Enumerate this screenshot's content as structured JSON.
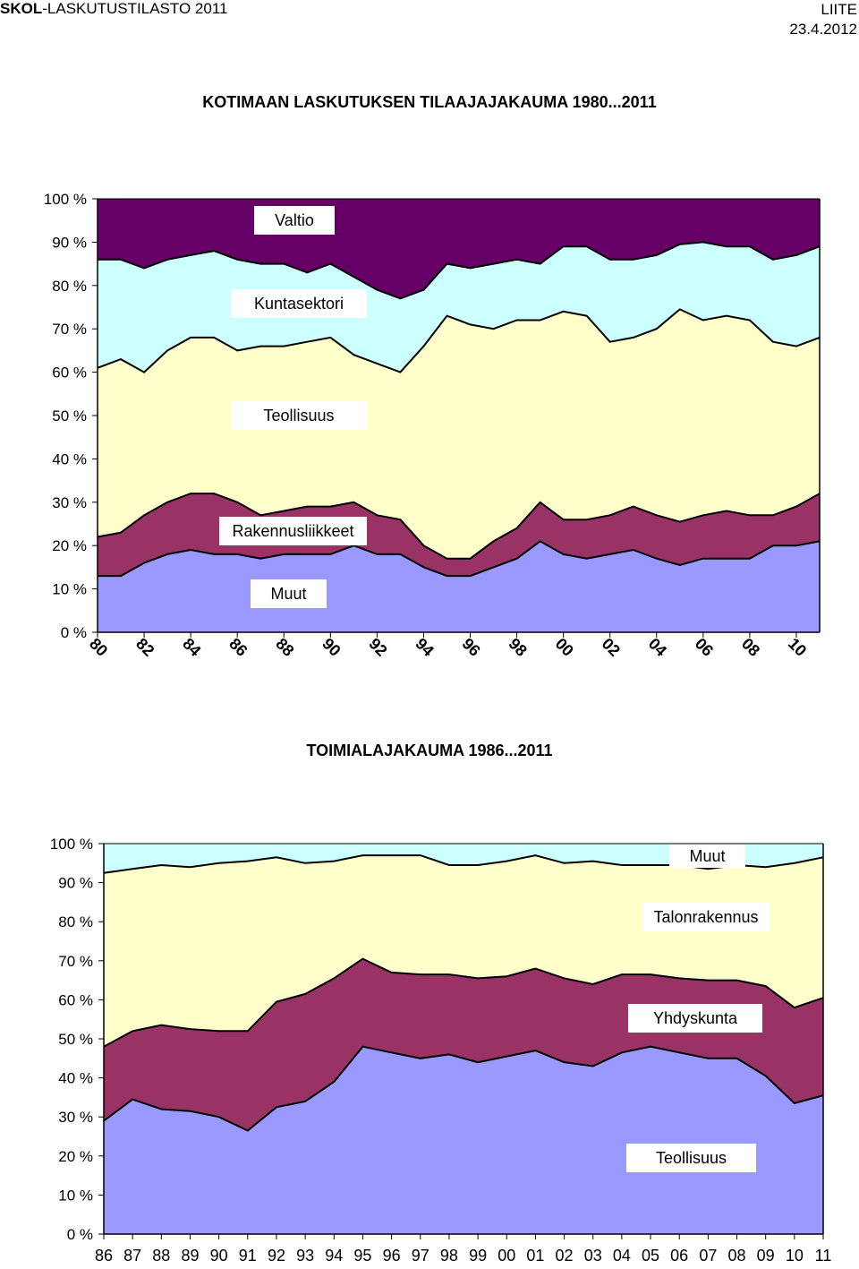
{
  "header": {
    "org": "SKOL",
    "subtitle": "-LASKUTUSTILASTO 2011",
    "label": "LIITE",
    "date": "23.4.2012"
  },
  "chart_data": [
    {
      "type": "area",
      "stacked": true,
      "title": "KOTIMAAN LASKUTUKSEN TILAAJAJAKAUMA 1980...2011",
      "x": [
        1980,
        1981,
        1982,
        1983,
        1984,
        1985,
        1986,
        1987,
        1988,
        1989,
        1990,
        1991,
        1992,
        1993,
        1994,
        1995,
        1996,
        1997,
        1998,
        1999,
        2000,
        2001,
        2002,
        2003,
        2004,
        2005,
        2006,
        2007,
        2008,
        2009,
        2010,
        2011
      ],
      "tick_labels": [
        "80",
        "82",
        "84",
        "86",
        "88",
        "90",
        "92",
        "94",
        "96",
        "98",
        "00",
        "02",
        "04",
        "06",
        "08",
        "10"
      ],
      "yticks": [
        "0 %",
        "10 %",
        "20 %",
        "30 %",
        "40 %",
        "50 %",
        "60 %",
        "70 %",
        "80 %",
        "90 %",
        "100 %"
      ],
      "ylim": [
        0,
        100
      ],
      "series": [
        {
          "name": "Muut",
          "color": "#9999FF",
          "values": [
            13,
            13,
            16,
            18,
            19,
            18,
            18,
            17,
            18,
            18,
            18,
            20,
            18,
            18,
            15,
            13,
            13,
            15,
            17,
            21,
            18,
            17,
            18,
            19,
            17,
            15.5,
            17,
            17,
            17,
            20,
            20,
            21
          ]
        },
        {
          "name": "Rakennusliikkeet",
          "color": "#993366",
          "values": [
            9,
            10,
            11,
            12,
            13,
            14,
            12,
            10,
            10,
            11,
            11,
            10,
            9,
            8,
            5,
            4,
            4,
            6,
            7,
            9,
            8,
            9,
            9,
            10,
            10,
            10,
            10,
            11,
            10,
            7,
            9,
            11
          ]
        },
        {
          "name": "Teollisuus",
          "color": "#FFFFCC",
          "values": [
            39,
            40,
            33,
            35,
            36,
            36,
            35,
            39,
            38,
            38,
            39,
            34,
            35,
            34,
            46,
            56,
            54,
            49,
            48,
            42,
            48,
            47,
            40,
            39,
            43,
            49,
            45,
            45,
            45,
            40,
            37,
            36
          ]
        },
        {
          "name": "Kuntasektori",
          "color": "#CCFFFF",
          "values": [
            25,
            23,
            24,
            21,
            19,
            20,
            21,
            19,
            19,
            16,
            17,
            18,
            17,
            17,
            13,
            12,
            13,
            15,
            14,
            13,
            15,
            16,
            19,
            18,
            17,
            15,
            18,
            16,
            17,
            19,
            21,
            21
          ]
        },
        {
          "name": "Valtio",
          "color": "#660066",
          "values": [
            14,
            14,
            16,
            14,
            13,
            12,
            14,
            15,
            15,
            17,
            15,
            18,
            21,
            23,
            21,
            15,
            16,
            15,
            14,
            15,
            11,
            11,
            14,
            14,
            13,
            10.5,
            10,
            11,
            11,
            14,
            13,
            11
          ]
        }
      ]
    },
    {
      "type": "area",
      "stacked": true,
      "title": "TOIMIALAJAKAUMA 1986...2011",
      "x": [
        1986,
        1987,
        1988,
        1989,
        1990,
        1991,
        1992,
        1993,
        1994,
        1995,
        1996,
        1997,
        1998,
        1999,
        2000,
        2001,
        2002,
        2003,
        2004,
        2005,
        2006,
        2007,
        2008,
        2009,
        2010,
        2011
      ],
      "tick_labels": [
        "86",
        "87",
        "88",
        "89",
        "90",
        "91",
        "92",
        "93",
        "94",
        "95",
        "96",
        "97",
        "98",
        "99",
        "00",
        "01",
        "02",
        "03",
        "04",
        "05",
        "06",
        "07",
        "08",
        "09",
        "10",
        "11"
      ],
      "yticks": [
        "0 %",
        "10 %",
        "20 %",
        "30 %",
        "40 %",
        "50 %",
        "60 %",
        "70 %",
        "80 %",
        "90 %",
        "100 %"
      ],
      "ylim": [
        0,
        100
      ],
      "series": [
        {
          "name": "Teollisuus",
          "color": "#9999FF",
          "values": [
            29,
            34.5,
            32,
            31.5,
            30,
            26.5,
            32.5,
            34,
            39,
            48,
            46.5,
            45,
            46,
            44,
            45.5,
            47,
            44,
            43,
            46.5,
            48,
            46.5,
            45,
            45,
            40.5,
            33.5,
            35.5
          ]
        },
        {
          "name": "Yhdyskunta",
          "color": "#993366",
          "values": [
            19,
            17.5,
            21.5,
            21,
            22,
            25.5,
            27,
            27.5,
            26.5,
            22.5,
            20.5,
            21.5,
            20.5,
            21.5,
            20.5,
            21,
            21.5,
            21,
            20,
            18.5,
            19,
            20,
            20,
            23,
            24.5,
            25
          ]
        },
        {
          "name": "Talonrakennus",
          "color": "#FFFFCC",
          "values": [
            44.5,
            41.5,
            41,
            41.5,
            43,
            43.5,
            37,
            33.5,
            30,
            26.5,
            30,
            30.5,
            28,
            29,
            29.5,
            29,
            29.5,
            31.5,
            28,
            28,
            29,
            28.5,
            29.5,
            30.5,
            37,
            36
          ]
        },
        {
          "name": "Muut",
          "color": "#CCFFFF",
          "values": [
            7.5,
            6.5,
            5.5,
            6,
            5,
            4.5,
            3.5,
            5,
            4.5,
            3,
            3,
            3,
            5.5,
            5.5,
            4.5,
            3,
            5,
            4.5,
            5.5,
            5.5,
            5.5,
            6.5,
            5.5,
            6,
            5,
            3.5
          ]
        }
      ]
    }
  ]
}
